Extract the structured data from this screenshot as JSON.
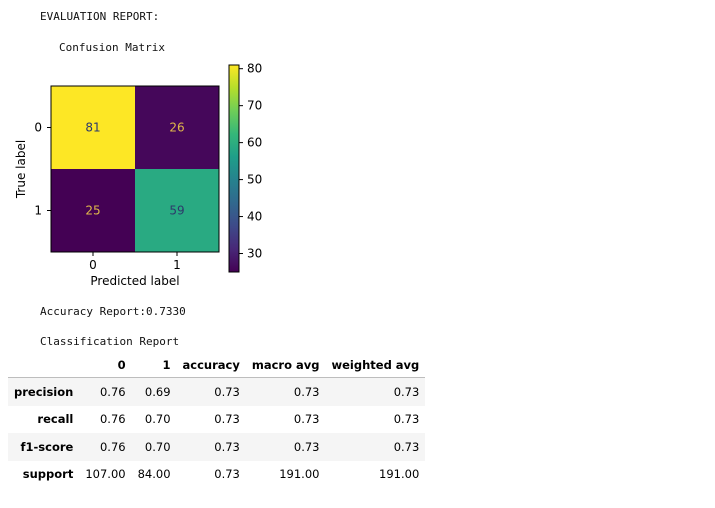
{
  "header": {
    "title": "EVALUATION REPORT:"
  },
  "chart_data": {
    "type": "heatmap",
    "title": "Confusion Matrix",
    "xlabel": "Predicted label",
    "ylabel": "True label",
    "x_categories": [
      "0",
      "1"
    ],
    "y_categories": [
      "0",
      "1"
    ],
    "values": [
      [
        81,
        26
      ],
      [
        25,
        59
      ]
    ],
    "colormap": "viridis",
    "colorbar": {
      "range": [
        25,
        81
      ],
      "ticks": [
        30,
        40,
        50,
        60,
        70,
        80
      ]
    },
    "colors": {
      "low": "#440154",
      "high": "#fde725"
    }
  },
  "accuracy": {
    "text": "Accuracy Report:0.7330"
  },
  "classification": {
    "title": "Classification Report",
    "columns": [
      "",
      "0",
      "1",
      "accuracy",
      "macro avg",
      "weighted avg"
    ],
    "rows": [
      {
        "label": "precision",
        "values": [
          "0.76",
          "0.69",
          "0.73",
          "0.73",
          "0.73"
        ]
      },
      {
        "label": "recall",
        "values": [
          "0.76",
          "0.70",
          "0.73",
          "0.73",
          "0.73"
        ]
      },
      {
        "label": "f1-score",
        "values": [
          "0.76",
          "0.70",
          "0.73",
          "0.73",
          "0.73"
        ]
      },
      {
        "label": "support",
        "values": [
          "107.00",
          "84.00",
          "0.73",
          "191.00",
          "191.00"
        ]
      }
    ]
  }
}
